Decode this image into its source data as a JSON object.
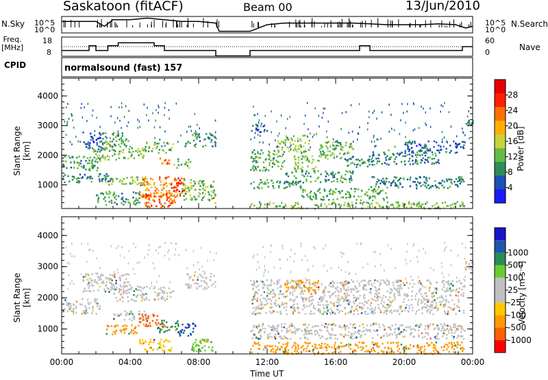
{
  "header": {
    "title": "Saskatoon (fitACF)",
    "beam": "Beam 00",
    "date": "13/Jun/2010"
  },
  "meta": {
    "nsky_label": "N.Sky",
    "nsky_ticks": [
      "10^5",
      "10^0"
    ],
    "nsearch_label": "N.Search",
    "nsearch_ticks": [
      "10^5",
      "10^0"
    ],
    "freq_label": "Freq.",
    "freq_unit": "[MHz]",
    "freq_ticks": [
      "18",
      "8"
    ],
    "nave_label": "Nave",
    "nave_ticks": [
      "60",
      "0"
    ],
    "cpid_label": "CPID",
    "cpid_value": "normalsound (fast) 157"
  },
  "colors": {
    "power": [
      "#1a1aff",
      "#1d50b4",
      "#2e8c5a",
      "#66bb44",
      "#c8d23c",
      "#ffb000",
      "#ff7000",
      "#ff2000",
      "#e60000"
    ],
    "velocity": [
      "#ff0000",
      "#ff6000",
      "#ff9b00",
      "#ffc800",
      "#c0c0c0",
      "#c0c0c0",
      "#66cc33",
      "#2a8c55",
      "#1f55aa",
      "#1515cc"
    ],
    "gray": "#bebebe"
  },
  "chart_data": [
    {
      "type": "heatmap",
      "name_hidden": "power",
      "xlabel": "",
      "ylabel": "Slant Range [km]",
      "x_ticks": [
        "00:00",
        "04:00",
        "08:00",
        "12:00",
        "16:00",
        "20:00",
        "00:00"
      ],
      "y_ticks": [
        "1000",
        "2000",
        "3000",
        "4000"
      ],
      "ylim": [
        200,
        4600
      ],
      "xlim_hours": [
        0,
        24
      ],
      "gap_hours": [
        9,
        11
      ],
      "colorbar": {
        "title": "Power [dB]",
        "ticks": [
          "4",
          "8",
          "12",
          "16",
          "20",
          "24",
          "28"
        ],
        "range": [
          0,
          32
        ]
      },
      "regions": [
        {
          "x": [
            0,
            2.2
          ],
          "y": [
            1500,
            2000
          ],
          "v": 10
        },
        {
          "x": [
            1.2,
            2.5
          ],
          "y": [
            2200,
            2800
          ],
          "v": 6
        },
        {
          "x": [
            1.8,
            3.2
          ],
          "y": [
            1800,
            2300
          ],
          "v": 13
        },
        {
          "x": [
            2.5,
            4
          ],
          "y": [
            2300,
            2800
          ],
          "v": 11
        },
        {
          "x": [
            3.2,
            4.8
          ],
          "y": [
            1900,
            2300
          ],
          "v": 14
        },
        {
          "x": [
            4.8,
            6.5
          ],
          "y": [
            2100,
            2500
          ],
          "v": 12
        },
        {
          "x": [
            5.7,
            6.4
          ],
          "y": [
            1700,
            1950
          ],
          "v": 22
        },
        {
          "x": [
            6.5,
            7.5
          ],
          "y": [
            1600,
            1900
          ],
          "v": 12
        },
        {
          "x": [
            7.2,
            9
          ],
          "y": [
            2300,
            2800
          ],
          "v": 10
        },
        {
          "x": [
            0,
            3
          ],
          "y": [
            1100,
            1400
          ],
          "v": 8
        },
        {
          "x": [
            2.5,
            5
          ],
          "y": [
            1000,
            1300
          ],
          "v": 14
        },
        {
          "x": [
            4.5,
            7
          ],
          "y": [
            600,
            1300
          ],
          "v": 22
        },
        {
          "x": [
            6.5,
            7.2
          ],
          "y": [
            800,
            1300
          ],
          "v": 26
        },
        {
          "x": [
            7,
            9
          ],
          "y": [
            500,
            1200
          ],
          "v": 13
        },
        {
          "x": [
            4.8,
            6.6
          ],
          "y": [
            250,
            700
          ],
          "v": 25
        },
        {
          "x": [
            2,
            4.5
          ],
          "y": [
            350,
            800
          ],
          "v": 10
        },
        {
          "x": [
            8.8,
            9
          ],
          "y": [
            300,
            600
          ],
          "v": 24
        },
        {
          "x": [
            11,
            12
          ],
          "y": [
            2800,
            3100
          ],
          "v": 6
        },
        {
          "x": [
            11,
            13
          ],
          "y": [
            1500,
            2200
          ],
          "v": 11
        },
        {
          "x": [
            12.5,
            14.5
          ],
          "y": [
            2100,
            2700
          ],
          "v": 14
        },
        {
          "x": [
            13.5,
            15
          ],
          "y": [
            1500,
            2000
          ],
          "v": 13
        },
        {
          "x": [
            15,
            17
          ],
          "y": [
            1900,
            2500
          ],
          "v": 12
        },
        {
          "x": [
            16.5,
            18
          ],
          "y": [
            1600,
            2000
          ],
          "v": 9
        },
        {
          "x": [
            18,
            22
          ],
          "y": [
            1700,
            2200
          ],
          "v": 8
        },
        {
          "x": [
            20,
            23.5
          ],
          "y": [
            2100,
            2500
          ],
          "v": 6
        },
        {
          "x": [
            11,
            14
          ],
          "y": [
            900,
            1200
          ],
          "v": 10
        },
        {
          "x": [
            13,
            17
          ],
          "y": [
            1100,
            1500
          ],
          "v": 10
        },
        {
          "x": [
            14,
            19
          ],
          "y": [
            500,
            900
          ],
          "v": 11
        },
        {
          "x": [
            18,
            23.5
          ],
          "y": [
            900,
            1300
          ],
          "v": 8
        },
        {
          "x": [
            11,
            23.5
          ],
          "y": [
            220,
            450
          ],
          "v": 13
        },
        {
          "x": [
            23.5,
            24
          ],
          "y": [
            2900,
            3200
          ],
          "v": 7
        }
      ]
    },
    {
      "type": "heatmap",
      "name_hidden": "velocity",
      "xlabel": "Time UT",
      "ylabel": "Slant Range [km]",
      "x_ticks": [
        "00:00",
        "04:00",
        "08:00",
        "12:00",
        "16:00",
        "20:00",
        "00:00"
      ],
      "y_ticks": [
        "1000",
        "2000",
        "3000",
        "4000"
      ],
      "ylim": [
        200,
        4600
      ],
      "xlim_hours": [
        0,
        24
      ],
      "gap_hours": [
        9,
        11
      ],
      "colorbar": {
        "title": "Velocity [m s⁻¹]",
        "ticks": [
          "-1000",
          "-500",
          "-100",
          "-25",
          "25",
          "100",
          "500",
          "1000"
        ],
        "range": [
          -1200,
          1200
        ]
      },
      "regions": [
        {
          "x": [
            0,
            2.2
          ],
          "y": [
            1500,
            2000
          ],
          "v": 0
        },
        {
          "x": [
            1.2,
            4
          ],
          "y": [
            2200,
            2800
          ],
          "v": 0
        },
        {
          "x": [
            3,
            6.5
          ],
          "y": [
            1900,
            2400
          ],
          "v": 0
        },
        {
          "x": [
            7.2,
            9
          ],
          "y": [
            2300,
            2800
          ],
          "v": 0
        },
        {
          "x": [
            3,
            5
          ],
          "y": [
            1300,
            1600
          ],
          "v": 0
        },
        {
          "x": [
            2.5,
            4.5
          ],
          "y": [
            850,
            1200
          ],
          "v": -300
        },
        {
          "x": [
            4.5,
            6
          ],
          "y": [
            1100,
            1500
          ],
          "v": -900
        },
        {
          "x": [
            5.5,
            6.8
          ],
          "y": [
            900,
            1300
          ],
          "v": 200
        },
        {
          "x": [
            6.8,
            7.8
          ],
          "y": [
            800,
            1200
          ],
          "v": 700
        },
        {
          "x": [
            7.5,
            9
          ],
          "y": [
            300,
            700
          ],
          "v": 60
        },
        {
          "x": [
            4.5,
            6.5
          ],
          "y": [
            300,
            700
          ],
          "v": -60
        },
        {
          "x": [
            11,
            23.5
          ],
          "y": [
            1500,
            2600
          ],
          "v": 0
        },
        {
          "x": [
            11,
            23.5
          ],
          "y": [
            700,
            1200
          ],
          "v": 0
        },
        {
          "x": [
            11,
            23.5
          ],
          "y": [
            220,
            600
          ],
          "v": -150
        },
        {
          "x": [
            13,
            15
          ],
          "y": [
            2200,
            2600
          ],
          "v": -300
        },
        {
          "x": [
            23.5,
            24
          ],
          "y": [
            2800,
            3200
          ],
          "v": 0
        }
      ]
    },
    {
      "type": "line",
      "name_hidden": "nsky",
      "x_hours": [
        0,
        1,
        2,
        2.5,
        3,
        4,
        5,
        6,
        7,
        8,
        9,
        9.2,
        11,
        12,
        13,
        14,
        15,
        16,
        17,
        18,
        19,
        20,
        21,
        22,
        23,
        23.6,
        24
      ],
      "values": [
        0.7,
        0.7,
        0.7,
        0.4,
        0.8,
        0.8,
        0.9,
        0.8,
        0.7,
        0.7,
        0.6,
        0.1,
        0.1,
        0.5,
        0.6,
        0.6,
        0.6,
        0.6,
        0.6,
        0.55,
        0.5,
        0.5,
        0.5,
        0.55,
        0.5,
        0.3,
        0.4
      ]
    },
    {
      "type": "line",
      "name_hidden": "freq",
      "x_hours": [
        0,
        1.6,
        1.6,
        2.0,
        2.0,
        2.7,
        2.7,
        3.3,
        3.3,
        5.4,
        5.4,
        6.0,
        6.0,
        9.0,
        9.0,
        11.0,
        11.0,
        17.4,
        17.4,
        18.0,
        18.0,
        23.4,
        23.4,
        24
      ],
      "values": [
        0.3,
        0.3,
        0.55,
        0.55,
        0.3,
        0.3,
        0.55,
        0.55,
        0.7,
        0.7,
        0.55,
        0.55,
        0.3,
        0.3,
        0.02,
        0.02,
        0.3,
        0.3,
        0.55,
        0.55,
        0.3,
        0.3,
        0.5,
        0.5
      ]
    }
  ]
}
